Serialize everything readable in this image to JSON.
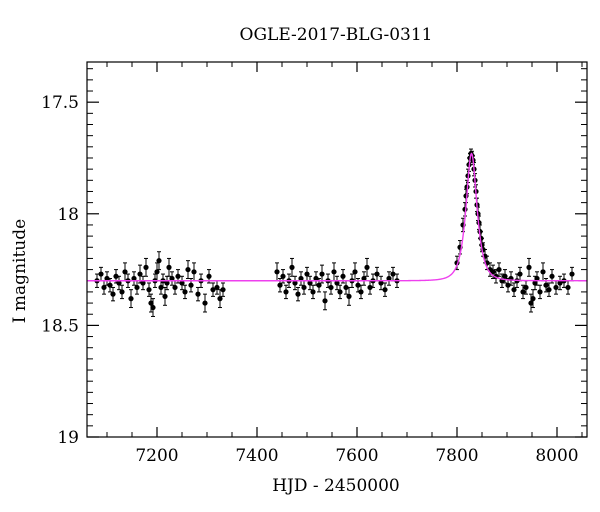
{
  "chart_data": {
    "type": "scatter",
    "title": "OGLE-2017-BLG-0311",
    "xlabel": "HJD - 2450000",
    "ylabel": "I magnitude",
    "xlim": [
      7060,
      8060
    ],
    "ylim": [
      19.0,
      17.32
    ],
    "y_inverted": true,
    "grid": false,
    "x_ticks": [
      7200,
      7400,
      7600,
      7800,
      8000
    ],
    "x_tick_labels": [
      "7200",
      "7400",
      "7600",
      "7800",
      "8000"
    ],
    "y_ticks": [
      17.5,
      18,
      18.5,
      19
    ],
    "y_tick_labels": [
      "17.5",
      "18",
      "18.5",
      "19"
    ],
    "series": [
      {
        "kind": "observations",
        "style": "black points with error bars",
        "color": "#000000",
        "points": [
          [
            7080,
            18.3,
            0.03
          ],
          [
            7088,
            18.27,
            0.03
          ],
          [
            7094,
            18.33,
            0.03
          ],
          [
            7100,
            18.29,
            0.03
          ],
          [
            7106,
            18.32,
            0.03
          ],
          [
            7112,
            18.36,
            0.03
          ],
          [
            7118,
            18.28,
            0.03
          ],
          [
            7124,
            18.31,
            0.03
          ],
          [
            7130,
            18.35,
            0.03
          ],
          [
            7136,
            18.26,
            0.04
          ],
          [
            7142,
            18.3,
            0.03
          ],
          [
            7148,
            18.38,
            0.04
          ],
          [
            7154,
            18.29,
            0.03
          ],
          [
            7160,
            18.33,
            0.03
          ],
          [
            7166,
            18.27,
            0.04
          ],
          [
            7172,
            18.31,
            0.03
          ],
          [
            7178,
            18.24,
            0.04
          ],
          [
            7184,
            18.34,
            0.03
          ],
          [
            7188,
            18.4,
            0.04
          ],
          [
            7192,
            18.42,
            0.04
          ],
          [
            7196,
            18.3,
            0.03
          ],
          [
            7200,
            18.26,
            0.04
          ],
          [
            7204,
            18.21,
            0.04
          ],
          [
            7208,
            18.33,
            0.03
          ],
          [
            7212,
            18.3,
            0.03
          ],
          [
            7216,
            18.37,
            0.04
          ],
          [
            7220,
            18.31,
            0.03
          ],
          [
            7224,
            18.24,
            0.04
          ],
          [
            7230,
            18.29,
            0.03
          ],
          [
            7236,
            18.33,
            0.03
          ],
          [
            7242,
            18.28,
            0.03
          ],
          [
            7250,
            18.31,
            0.03
          ],
          [
            7256,
            18.35,
            0.03
          ],
          [
            7262,
            18.25,
            0.04
          ],
          [
            7268,
            18.32,
            0.03
          ],
          [
            7274,
            18.26,
            0.04
          ],
          [
            7282,
            18.36,
            0.03
          ],
          [
            7288,
            18.3,
            0.03
          ],
          [
            7296,
            18.4,
            0.04
          ],
          [
            7304,
            18.28,
            0.03
          ],
          [
            7312,
            18.34,
            0.03
          ],
          [
            7320,
            18.33,
            0.03
          ],
          [
            7326,
            18.38,
            0.04
          ],
          [
            7332,
            18.34,
            0.03
          ],
          [
            7440,
            18.26,
            0.04
          ],
          [
            7446,
            18.32,
            0.03
          ],
          [
            7452,
            18.28,
            0.03
          ],
          [
            7458,
            18.35,
            0.03
          ],
          [
            7464,
            18.3,
            0.03
          ],
          [
            7470,
            18.24,
            0.04
          ],
          [
            7476,
            18.31,
            0.03
          ],
          [
            7482,
            18.36,
            0.03
          ],
          [
            7488,
            18.29,
            0.03
          ],
          [
            7494,
            18.33,
            0.03
          ],
          [
            7500,
            18.27,
            0.03
          ],
          [
            7506,
            18.31,
            0.03
          ],
          [
            7512,
            18.35,
            0.03
          ],
          [
            7518,
            18.29,
            0.03
          ],
          [
            7524,
            18.32,
            0.03
          ],
          [
            7530,
            18.27,
            0.04
          ],
          [
            7536,
            18.39,
            0.04
          ],
          [
            7542,
            18.3,
            0.03
          ],
          [
            7548,
            18.33,
            0.03
          ],
          [
            7554,
            18.26,
            0.04
          ],
          [
            7560,
            18.31,
            0.03
          ],
          [
            7566,
            18.35,
            0.03
          ],
          [
            7572,
            18.28,
            0.03
          ],
          [
            7578,
            18.33,
            0.03
          ],
          [
            7584,
            18.37,
            0.04
          ],
          [
            7590,
            18.3,
            0.03
          ],
          [
            7596,
            18.26,
            0.04
          ],
          [
            7602,
            18.32,
            0.03
          ],
          [
            7608,
            18.35,
            0.03
          ],
          [
            7614,
            18.29,
            0.03
          ],
          [
            7620,
            18.24,
            0.04
          ],
          [
            7626,
            18.33,
            0.03
          ],
          [
            7632,
            18.3,
            0.03
          ],
          [
            7640,
            18.27,
            0.03
          ],
          [
            7648,
            18.31,
            0.03
          ],
          [
            7656,
            18.34,
            0.03
          ],
          [
            7664,
            18.29,
            0.03
          ],
          [
            7672,
            18.27,
            0.03
          ],
          [
            7680,
            18.3,
            0.03
          ],
          [
            7800,
            18.22,
            0.03
          ],
          [
            7806,
            18.15,
            0.03
          ],
          [
            7812,
            18.05,
            0.03
          ],
          [
            7816,
            17.98,
            0.03
          ],
          [
            7818,
            17.92,
            0.03
          ],
          [
            7820,
            17.88,
            0.03
          ],
          [
            7822,
            17.83,
            0.03
          ],
          [
            7824,
            17.78,
            0.03
          ],
          [
            7826,
            17.75,
            0.02
          ],
          [
            7828,
            17.73,
            0.02
          ],
          [
            7830,
            17.74,
            0.02
          ],
          [
            7832,
            17.76,
            0.02
          ],
          [
            7834,
            17.8,
            0.03
          ],
          [
            7836,
            17.85,
            0.03
          ],
          [
            7838,
            17.9,
            0.03
          ],
          [
            7840,
            17.96,
            0.03
          ],
          [
            7842,
            18.0,
            0.03
          ],
          [
            7844,
            18.04,
            0.03
          ],
          [
            7846,
            18.08,
            0.03
          ],
          [
            7848,
            18.11,
            0.03
          ],
          [
            7850,
            18.14,
            0.03
          ],
          [
            7852,
            18.16,
            0.03
          ],
          [
            7856,
            18.19,
            0.03
          ],
          [
            7860,
            18.22,
            0.03
          ],
          [
            7866,
            18.25,
            0.03
          ],
          [
            7872,
            18.26,
            0.03
          ],
          [
            7878,
            18.28,
            0.03
          ],
          [
            7884,
            18.25,
            0.03
          ],
          [
            7890,
            18.3,
            0.03
          ],
          [
            7896,
            18.28,
            0.03
          ],
          [
            7902,
            18.32,
            0.03
          ],
          [
            7908,
            18.29,
            0.03
          ],
          [
            7914,
            18.34,
            0.03
          ],
          [
            7920,
            18.3,
            0.03
          ],
          [
            7926,
            18.27,
            0.03
          ],
          [
            7932,
            18.35,
            0.03
          ],
          [
            7938,
            18.33,
            0.03
          ],
          [
            7944,
            18.24,
            0.04
          ],
          [
            7948,
            18.4,
            0.04
          ],
          [
            7952,
            18.38,
            0.04
          ],
          [
            7956,
            18.31,
            0.03
          ],
          [
            7960,
            18.29,
            0.03
          ],
          [
            7966,
            18.35,
            0.03
          ],
          [
            7972,
            18.26,
            0.04
          ],
          [
            7978,
            18.32,
            0.03
          ],
          [
            7984,
            18.34,
            0.03
          ],
          [
            7990,
            18.28,
            0.03
          ],
          [
            7998,
            18.33,
            0.03
          ],
          [
            8006,
            18.31,
            0.03
          ],
          [
            8014,
            18.3,
            0.03
          ],
          [
            8022,
            18.33,
            0.03
          ],
          [
            8030,
            18.27,
            0.03
          ]
        ]
      },
      {
        "kind": "model",
        "style": "magenta line",
        "color": "#ee40ee",
        "baseline": 18.3,
        "peak": 17.73,
        "t0": 7829,
        "tE": 16.0,
        "x_range": [
          7060,
          8060
        ]
      }
    ]
  }
}
